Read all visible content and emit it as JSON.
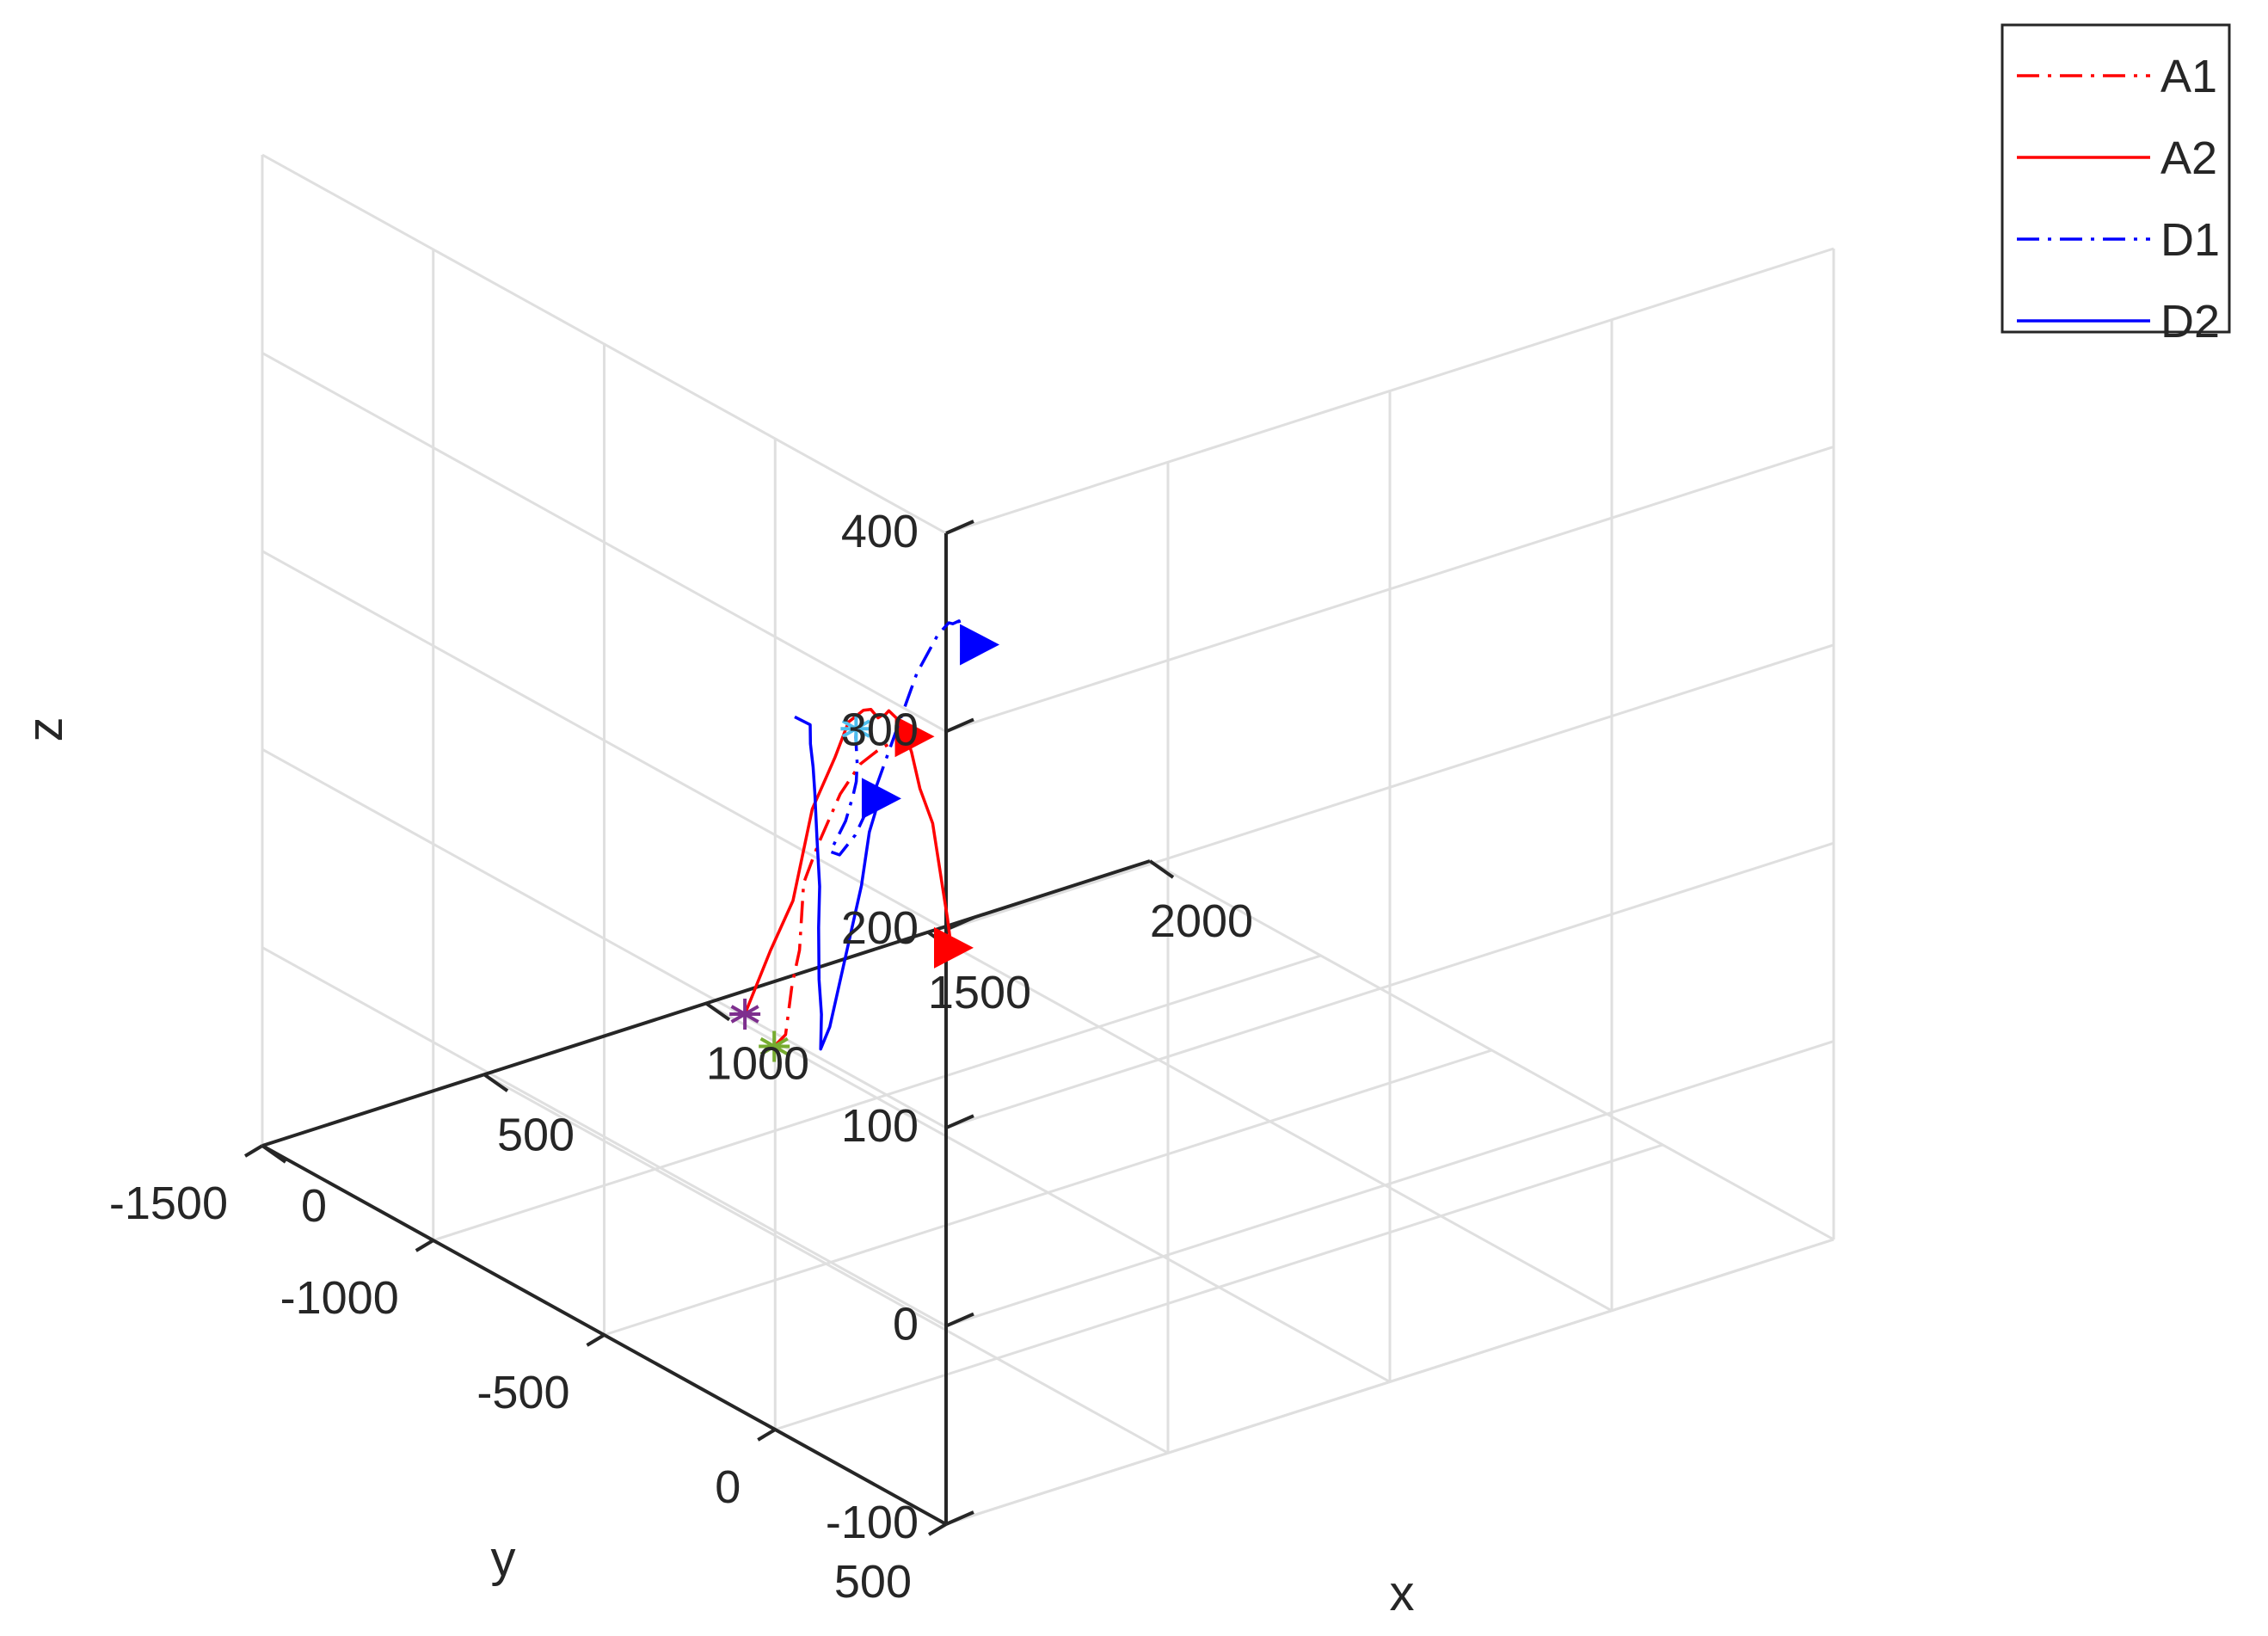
{
  "chart_data": {
    "type": "line3d",
    "title": "",
    "xlabel": "x",
    "ylabel": "y",
    "zlabel": "z",
    "xlim": [
      0,
      2000
    ],
    "ylim": [
      -1500,
      500
    ],
    "zlim": [
      -100,
      400
    ],
    "x_ticks": [
      "0",
      "500",
      "1000",
      "1500",
      "2000"
    ],
    "y_ticks": [
      "500",
      "0",
      "-500",
      "-1000",
      "-1500"
    ],
    "z_ticks": [
      "400",
      "300",
      "200",
      "100",
      "0",
      "-100"
    ],
    "grid": true,
    "legend_position": "top-right",
    "series": [
      {
        "name": "A1",
        "color": "#ff0000",
        "line_style": "dash-dot",
        "start_marker": "asterisk",
        "start_marker_color": "#77ac30",
        "end_marker": "triangle-right",
        "points": [
          [
            -53.2,
            66.4,
            103.5
          ],
          [
            -39.0,
            81.2,
            109.8
          ],
          [
            -31.7,
            90.7,
            135.3
          ],
          [
            -32.5,
            113.5,
            155.1
          ],
          [
            -32.2,
            125.2,
            190.0
          ],
          [
            -30.1,
            164.9,
            213.2
          ],
          [
            -23.8,
            221.3,
            243.5
          ],
          [
            -19.7,
            273.9,
            263.3
          ],
          [
            -14.8,
            323.1,
            275.1
          ],
          [
            -10.0,
            370.4,
            284.2
          ],
          [
            -6.1,
            408.7,
            289.2
          ]
        ]
      },
      {
        "name": "A2",
        "color": "#ff0000",
        "line_style": "solid",
        "start_marker": "asterisk",
        "start_marker_color": "#7e2f8e",
        "end_marker": "triangle-right",
        "points": [
          [
            -45.0,
            -30.0,
            110.0
          ],
          [
            -49.0,
            50.0,
            150.0
          ],
          [
            -17.0,
            74.2,
            175.2
          ],
          [
            -16.5,
            130.0,
            226.7
          ],
          [
            -3.8,
            180.0,
            256.6
          ],
          [
            2.3,
            211.4,
            277.0
          ],
          [
            7.9,
            248.0,
            286.1
          ],
          [
            21.6,
            252.1,
            285.9
          ],
          [
            24.0,
            270.2,
            283.2
          ],
          [
            25.6,
            278.6,
            285.1
          ],
          [
            26.6,
            287.6,
            286.3
          ],
          [
            26.4,
            298.2,
            289.3
          ],
          [
            22.2,
            340.0,
            287.5
          ],
          [
            17.3,
            376.3,
            276.6
          ],
          [
            13.2,
            406.3,
            261.3
          ],
          [
            6.1,
            452.9,
            248.7
          ],
          [
            0.6,
            488.9,
            220.4
          ],
          [
            -4.5,
            510.1,
            206.8
          ],
          [
            -7.8,
            525.2,
            193.8
          ]
        ]
      },
      {
        "name": "D1",
        "color": "#0000ff",
        "line_style": "dash-dot",
        "start_marker": "asterisk",
        "start_marker_color": "#4dbeee",
        "end_marker": "triangle-right",
        "points": [
          [
            -14.0,
            255.0,
            279.0
          ],
          [
            -3.7,
            240.6,
            272.4
          ],
          [
            12.3,
            223.9,
            256.8
          ],
          [
            22.2,
            208.5,
            245.3
          ],
          [
            24.0,
            197.5,
            237.5
          ],
          [
            18.2,
            182.5,
            223.2
          ],
          [
            -2.8,
            165.0,
            207.6
          ],
          [
            0.8,
            187.2,
            207.8
          ],
          [
            5.8,
            227.1,
            221.3
          ],
          [
            9.9,
            265.6,
            240.7
          ],
          [
            29.0,
            376.6,
            315.4
          ],
          [
            28.9,
            438.1,
            340.7
          ],
          [
            26.9,
            472.9,
            350.3
          ],
          [
            22.6,
            490.6,
            351.8
          ],
          [
            19.9,
            512.1,
            355.5
          ],
          [
            8.6,
            536.9,
            351.8
          ],
          [
            -0.6,
            566.1,
            353.1
          ],
          [
            -7.1,
            590.0,
            356.0
          ],
          [
            -9.3,
            599.7,
            358.0
          ],
          [
            -20.6,
            617.5,
            356.5
          ]
        ]
      },
      {
        "name": "D2",
        "color": "#0000ff",
        "line_style": "solid",
        "start_marker": "none",
        "end_marker": "triangle-right",
        "points": [
          [
            -74.5,
            154.0,
            279.7
          ],
          [
            -50.8,
            168.5,
            275.4
          ],
          [
            -44.0,
            160.5,
            264.5
          ],
          [
            -35.2,
            156.7,
            251.8
          ],
          [
            -25.2,
            148.7,
            237.3
          ],
          [
            -5.1,
            128.7,
            211.8
          ],
          [
            18.8,
            105.9,
            182.8
          ],
          [
            34.5,
            82.4,
            158.7
          ],
          [
            53.6,
            58.9,
            128.9
          ],
          [
            66.3,
            49.3,
            109.4
          ],
          [
            73.7,
            37.5,
            90.3
          ],
          [
            76.5,
            60.5,
            103.5
          ],
          [
            44.8,
            194.2,
            189.8
          ],
          [
            20.6,
            248.8,
            223.8
          ],
          [
            17.5,
            269.1,
            235.2
          ],
          [
            15.0,
            284.2,
            244.5
          ]
        ]
      }
    ]
  }
}
